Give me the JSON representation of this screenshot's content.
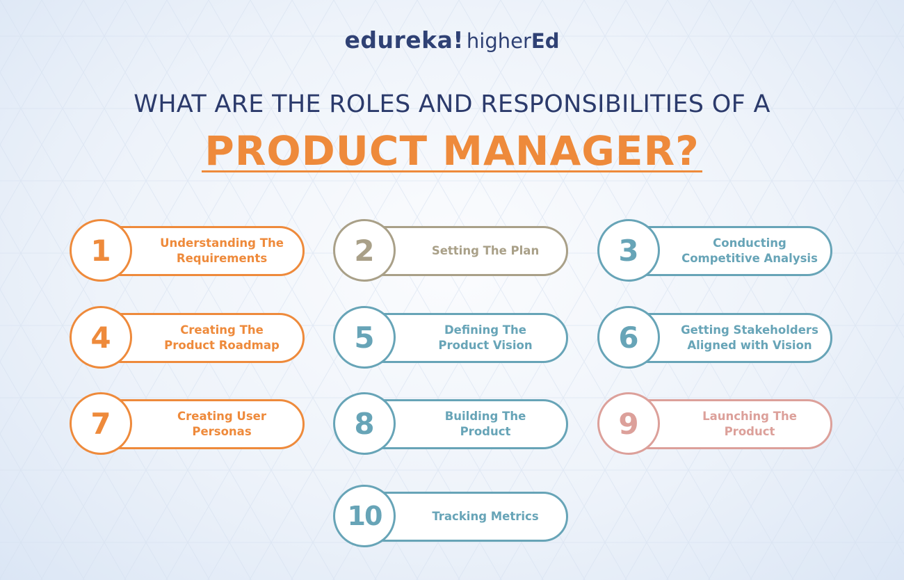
{
  "logo": {
    "brand": "edureka!",
    "sub_prefix": "higher",
    "sub_suffix": "Ed"
  },
  "title": {
    "line1": "WHAT ARE THE ROLES AND RESPONSIBILITIES OF A",
    "line2": "PRODUCT MANAGER?"
  },
  "colors": {
    "orange": "#ee8a3b",
    "taupe": "#a9a088",
    "teal": "#67a4b7",
    "rose": "#dca09a",
    "navy": "#2f4174"
  },
  "items": [
    {
      "number": "1",
      "line1": "Understanding The",
      "line2": "Requirements",
      "color": "orange"
    },
    {
      "number": "2",
      "line1": "Setting The Plan",
      "line2": "",
      "color": "taupe"
    },
    {
      "number": "3",
      "line1": "Conducting",
      "line2": "Competitive Analysis",
      "color": "teal"
    },
    {
      "number": "4",
      "line1": "Creating The",
      "line2": "Product Roadmap",
      "color": "orange"
    },
    {
      "number": "5",
      "line1": "Defining The",
      "line2": "Product Vision",
      "color": "teal"
    },
    {
      "number": "6",
      "line1": "Getting Stakeholders",
      "line2": "Aligned with Vision",
      "color": "teal"
    },
    {
      "number": "7",
      "line1": "Creating User",
      "line2": "Personas",
      "color": "orange"
    },
    {
      "number": "8",
      "line1": "Building The",
      "line2": "Product",
      "color": "teal"
    },
    {
      "number": "9",
      "line1": "Launching The",
      "line2": "Product",
      "color": "rose"
    },
    {
      "number": "10",
      "line1": "Tracking Metrics",
      "line2": "",
      "color": "teal"
    }
  ]
}
